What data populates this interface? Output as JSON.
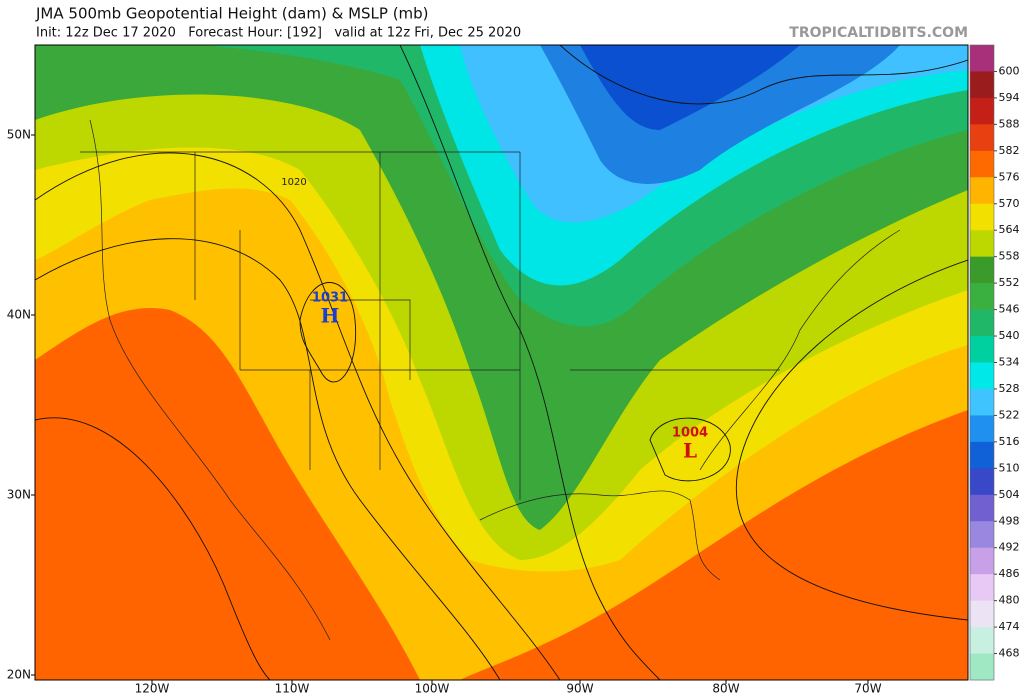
{
  "header": {
    "title": "JMA 500mb Geopotential Height (dam) & MSLP (mb)",
    "subtitle": "Init: 12z Dec 17 2020   Forecast Hour: [192]   valid at 12z Fri, Dec 25 2020",
    "source": "TROPICALTIDBITS.COM"
  },
  "map": {
    "lat_labels": [
      "50N",
      "40N",
      "30N",
      "20N"
    ],
    "lon_labels": [
      "120W",
      "110W",
      "100W",
      "90W",
      "80W",
      "70W"
    ],
    "high": {
      "value": "1031",
      "letter": "H"
    },
    "low": {
      "value": "1004",
      "letter": "L"
    },
    "contour_label": "1020"
  },
  "colorbar": {
    "levels": [
      600,
      594,
      588,
      582,
      576,
      570,
      564,
      558,
      552,
      546,
      540,
      534,
      528,
      522,
      516,
      510,
      504,
      498,
      492,
      486,
      480,
      474,
      468
    ],
    "colors": [
      "#a8307a",
      "#9a1c1c",
      "#c42018",
      "#e84010",
      "#ff6a00",
      "#ffb400",
      "#f2e000",
      "#bcd800",
      "#3a9a2a",
      "#3ab040",
      "#20b868",
      "#00d0a0",
      "#00e8e8",
      "#40c4ff",
      "#2090f0",
      "#1060d8",
      "#3848c8",
      "#7060d0",
      "#9a88e0",
      "#c8a0e8",
      "#e8c8f4",
      "#ece4f4",
      "#c8f0e0",
      "#a0e8c4"
    ]
  }
}
